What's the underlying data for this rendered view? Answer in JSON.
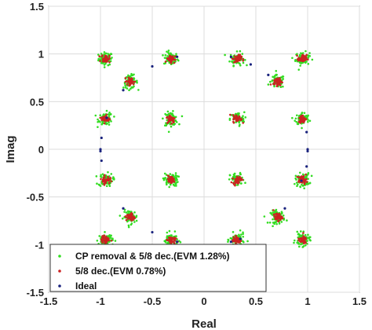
{
  "chart_data": {
    "type": "scatter",
    "xlabel": "Real",
    "ylabel": "Imag",
    "xlim": [
      -1.5,
      1.5
    ],
    "ylim": [
      -1.5,
      1.5
    ],
    "xticks": [
      -1.5,
      -1,
      -0.5,
      0,
      0.5,
      1,
      1.5
    ],
    "yticks": [
      -1.5,
      -1,
      -0.5,
      0,
      0.5,
      1,
      1.5
    ],
    "xtick_labels": [
      "-1.5",
      "-1",
      "-0.5",
      "0",
      "0.5",
      "1",
      "1.5"
    ],
    "ytick_labels": [
      "-1.5",
      "-1",
      "-0.5",
      "0",
      "0.5",
      "1",
      "1.5"
    ],
    "grid": true,
    "legend_position": "bottom-left",
    "clusters": [
      [
        -0.95,
        0.95
      ],
      [
        -0.32,
        0.95
      ],
      [
        0.32,
        0.95
      ],
      [
        0.95,
        0.95
      ],
      [
        -0.71,
        0.71
      ],
      [
        0.71,
        0.71
      ],
      [
        -0.95,
        0.32
      ],
      [
        -0.32,
        0.32
      ],
      [
        0.32,
        0.32
      ],
      [
        0.95,
        0.32
      ],
      [
        -0.95,
        -0.32
      ],
      [
        -0.32,
        -0.32
      ],
      [
        0.32,
        -0.32
      ],
      [
        0.95,
        -0.32
      ],
      [
        -0.71,
        -0.71
      ],
      [
        0.71,
        -0.71
      ],
      [
        -0.95,
        -0.95
      ],
      [
        -0.32,
        -0.95
      ],
      [
        0.32,
        -0.95
      ],
      [
        0.95,
        -0.95
      ]
    ],
    "series": [
      {
        "name": "CP removal & 5/8 dec.(EVM 1.28%)",
        "color": "#33dd22",
        "spread": 0.034
      },
      {
        "name": "5/8 dec.(EVM 0.78%)",
        "color": "#cc2222",
        "spread": 0.02
      },
      {
        "name": "Ideal",
        "color": "#1a237e",
        "points": [
          [
            -0.5,
            0.87
          ],
          [
            -0.26,
            0.97
          ],
          [
            0.26,
            0.97
          ],
          [
            0.45,
            0.89
          ],
          [
            0.62,
            0.78
          ],
          [
            -0.78,
            0.62
          ],
          [
            0.99,
            0.18
          ],
          [
            -0.99,
            0.12
          ],
          [
            -1.0,
            0.0
          ],
          [
            -1.0,
            -0.02
          ],
          [
            1.0,
            0.0
          ],
          [
            1.0,
            -0.02
          ],
          [
            -0.99,
            -0.12
          ],
          [
            0.99,
            -0.18
          ],
          [
            -0.78,
            -0.62
          ],
          [
            0.78,
            -0.62
          ],
          [
            -0.5,
            -0.87
          ],
          [
            -0.26,
            -0.97
          ],
          [
            0.26,
            -0.97
          ],
          [
            0.35,
            -0.94
          ],
          [
            0.94,
            -0.33
          ],
          [
            -0.94,
            0.33
          ]
        ]
      }
    ]
  }
}
